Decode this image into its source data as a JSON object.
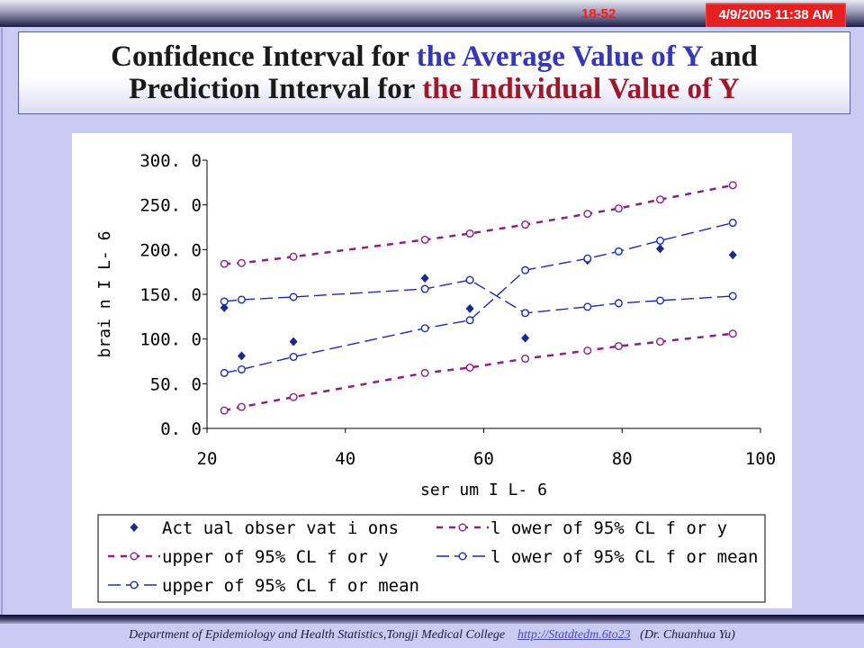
{
  "header": {
    "slide_number": "18-52",
    "timestamp": "4/9/2005 11:38 AM"
  },
  "title": {
    "line1_part1": "Confidence Interval for ",
    "line1_part2": "the Average Value of Y",
    "line1_part3": " and",
    "line2_part1": "Prediction Interval for ",
    "line2_part2": "the Individual Value of Y"
  },
  "colors": {
    "title_blue": "#3737b4",
    "title_red": "#9a1a2c",
    "actual": "#1a2a8a",
    "prediction_interval": "#8c1e8c",
    "confidence_interval": "#1a2ab4"
  },
  "chart_data": {
    "type": "scatter",
    "xlabel": "ser um I L- 6",
    "ylabel": "brai n I L- 6",
    "xlim": [
      20,
      100
    ],
    "ylim": [
      0,
      300
    ],
    "x_ticks": [
      "20",
      "40",
      "60",
      "80",
      "100"
    ],
    "y_ticks": [
      "0. 0",
      "50. 0",
      "100. 0",
      "150. 0",
      "200. 0",
      "250. 0",
      "300. 0"
    ],
    "grid": false,
    "legend_position": "bottom",
    "series": [
      {
        "name": "Act ual  obser vat i ons",
        "style": "markers",
        "x": [
          22.5,
          25,
          32.5,
          51.5,
          58,
          66,
          75,
          79.5,
          85.5,
          96
        ],
        "y": [
          135,
          81,
          97,
          168,
          134,
          101,
          188,
          140,
          201,
          194
        ]
      },
      {
        "name": "l ower  of  95% CL f or  y",
        "style": "short-dash",
        "x": [
          22.5,
          25,
          32.5,
          51.5,
          58,
          66,
          75,
          79.5,
          85.5,
          96
        ],
        "y": [
          20,
          24,
          35,
          62,
          68,
          78,
          87,
          92,
          97,
          106
        ]
      },
      {
        "name": "upper  of  95% CL f or  y",
        "style": "short-dash",
        "x": [
          22.5,
          25,
          32.5,
          51.5,
          58,
          66,
          75,
          79.5,
          85.5,
          96
        ],
        "y": [
          184,
          185,
          192,
          211,
          218,
          228,
          240,
          246,
          256,
          272
        ]
      },
      {
        "name": "l ower  of  95% CL f or  mean",
        "style": "long-dash",
        "x": [
          22.5,
          25,
          32.5,
          51.5,
          58,
          66,
          75,
          79.5,
          85.5,
          96
        ],
        "y": [
          142,
          144,
          147,
          156,
          166,
          129,
          136,
          140,
          143,
          148
        ]
      },
      {
        "name": "upper  of  95% CL f or  mean",
        "style": "long-dash",
        "x": [
          22.5,
          25,
          32.5,
          51.5,
          58,
          66,
          75,
          79.5,
          85.5,
          96
        ],
        "y": [
          62,
          66,
          80,
          112,
          121,
          177,
          190,
          198,
          210,
          230
        ]
      }
    ]
  },
  "footer": {
    "department": "Department of Epidemiology and Health Statistics,Tongji Medical College",
    "link": "http://Statdtedm.6to23",
    "author": "(Dr. Chuanhua Yu)"
  }
}
